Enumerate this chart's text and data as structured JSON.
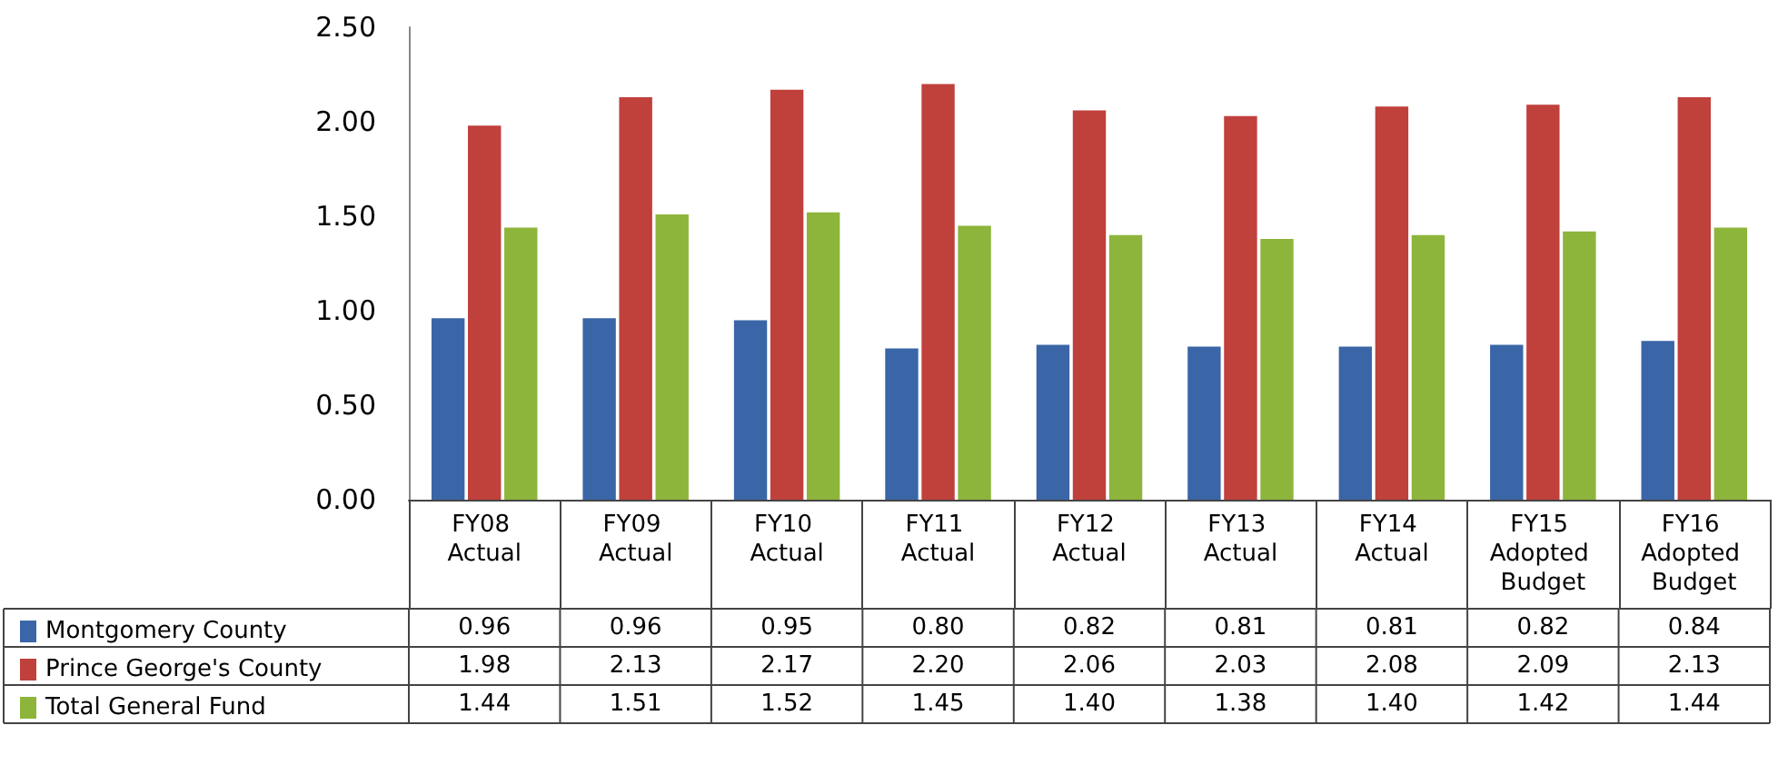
{
  "chart_data": {
    "type": "bar",
    "categories": [
      "FY08 Actual",
      "FY09 Actual",
      "FY10 Actual",
      "FY11 Actual",
      "FY12 Actual",
      "FY13 Actual",
      "FY14 Actual",
      "FY15 Adopted Budget",
      "FY16 Adopted Budget"
    ],
    "series": [
      {
        "name": "Montgomery County",
        "color": "#3a66a7",
        "values": [
          0.96,
          0.96,
          0.95,
          0.8,
          0.82,
          0.81,
          0.81,
          0.82,
          0.84
        ],
        "value_labels": [
          "0.96",
          "0.96",
          "0.95",
          "0.80",
          "0.82",
          "0.81",
          "0.81",
          "0.82",
          "0.84"
        ]
      },
      {
        "name": "Prince George's County",
        "color": "#c0403c",
        "values": [
          1.98,
          2.13,
          2.17,
          2.2,
          2.06,
          2.03,
          2.08,
          2.09,
          2.13
        ],
        "value_labels": [
          "1.98",
          "2.13",
          "2.17",
          "2.20",
          "2.06",
          "2.03",
          "2.08",
          "2.09",
          "2.13"
        ]
      },
      {
        "name": "Total General Fund",
        "color": "#8db53c",
        "values": [
          1.44,
          1.51,
          1.52,
          1.45,
          1.4,
          1.38,
          1.4,
          1.42,
          1.44
        ],
        "value_labels": [
          "1.44",
          "1.51",
          "1.52",
          "1.45",
          "1.40",
          "1.38",
          "1.40",
          "1.42",
          "1.44"
        ]
      }
    ],
    "ylim": [
      0,
      2.5
    ],
    "yticks": [
      {
        "value": 0,
        "label": "0.00"
      },
      {
        "value": 0.5,
        "label": "0.50"
      },
      {
        "value": 1,
        "label": "1.00"
      },
      {
        "value": 1.5,
        "label": "1.50"
      },
      {
        "value": 2,
        "label": "2.00"
      },
      {
        "value": 2.5,
        "label": "2.50"
      }
    ],
    "grid": false,
    "legend": "bottom"
  }
}
